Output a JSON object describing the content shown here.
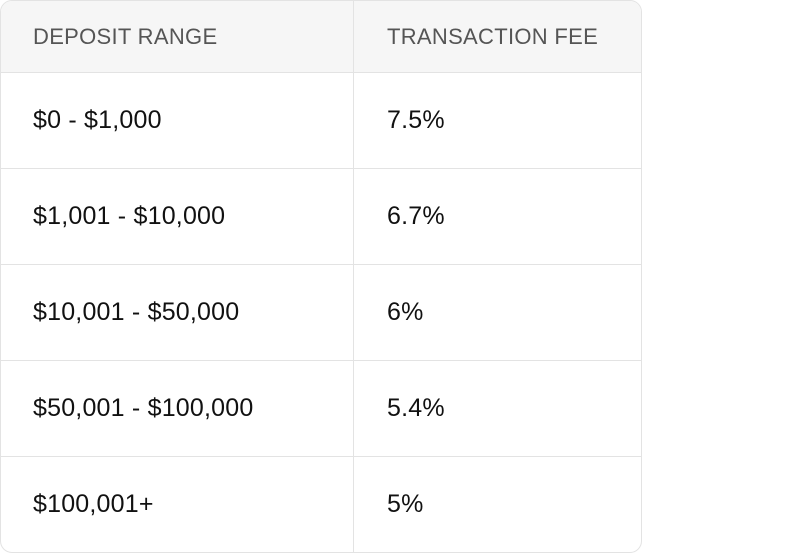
{
  "table": {
    "headers": [
      "DEPOSIT RANGE",
      "TRANSACTION FEE"
    ],
    "rows": [
      [
        "$0 - $1,000",
        "7.5%"
      ],
      [
        "$1,001 - $10,000",
        "6.7%"
      ],
      [
        "$10,001 - $50,000",
        "6%"
      ],
      [
        "$50,001 - $100,000",
        "5.4%"
      ],
      [
        "$100,001+",
        "5%"
      ]
    ]
  },
  "colors": {
    "border": "#e3e3e3",
    "header_background": "#f6f6f6",
    "header_text": "#555555",
    "body_text": "#111111"
  }
}
